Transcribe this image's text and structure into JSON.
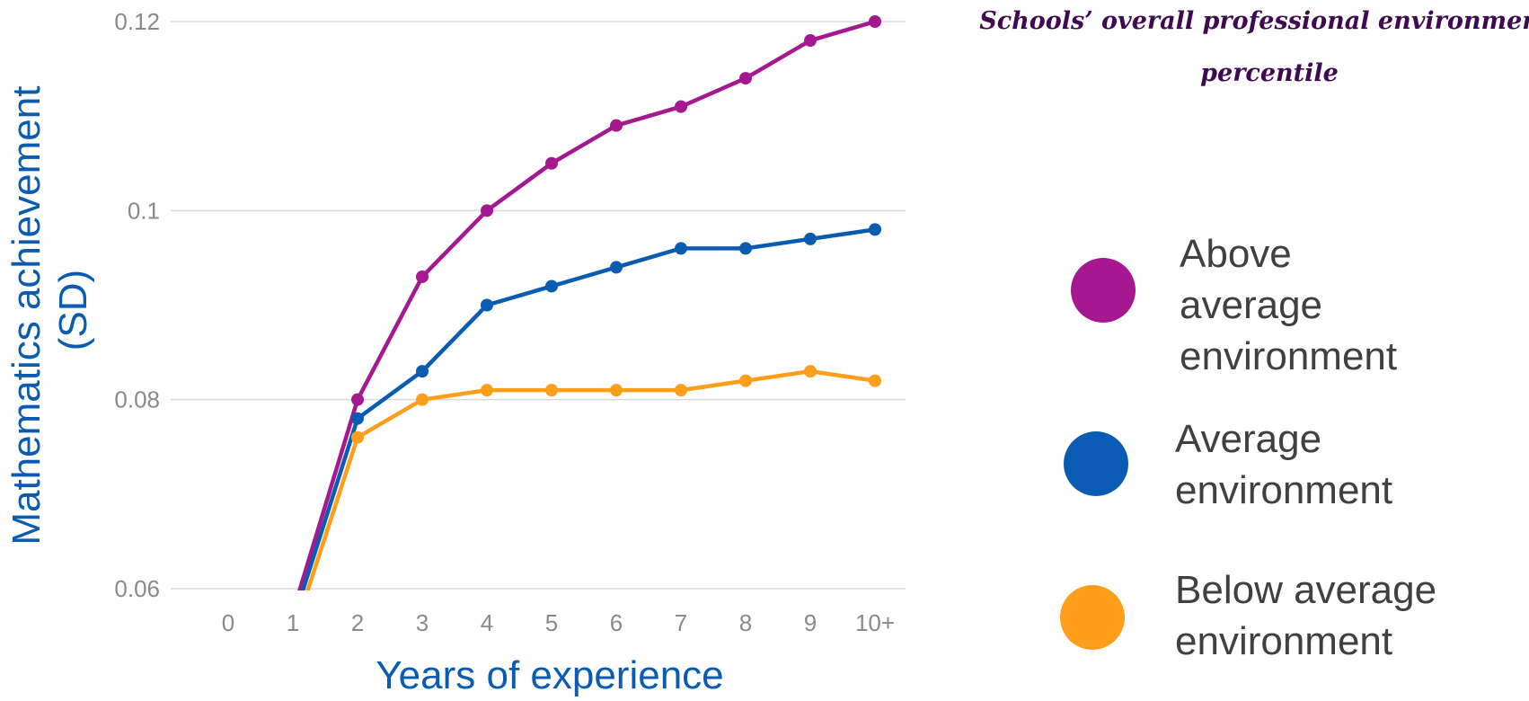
{
  "chart_data": {
    "type": "line",
    "title": "",
    "xlabel": "Years of experience",
    "ylabel_lines": [
      "Mathematics achievement",
      "(SD)"
    ],
    "categories": [
      "0",
      "1",
      "2",
      "3",
      "4",
      "5",
      "6",
      "7",
      "8",
      "9",
      "10+"
    ],
    "ylim": [
      0.06,
      0.12
    ],
    "yticks": [
      "0.06",
      "0.08",
      "0.1",
      "0.12"
    ],
    "grid": true,
    "legend": {
      "title_lines": [
        "Schools’ overall professional environment",
        "percentile"
      ],
      "placement": "right"
    },
    "series": [
      {
        "name_lines": [
          "Above",
          "average",
          "environment"
        ],
        "color": "#A51890",
        "values": [
          null,
          0.0575,
          0.08,
          0.093,
          0.1,
          0.105,
          0.109,
          0.111,
          0.114,
          0.118,
          0.12
        ]
      },
      {
        "name_lines": [
          "Average",
          "environment"
        ],
        "color": "#0A5CB3",
        "values": [
          null,
          0.0565,
          0.078,
          0.083,
          0.09,
          0.092,
          0.094,
          0.096,
          0.096,
          0.097,
          0.098
        ]
      },
      {
        "name_lines": [
          "Below average",
          "environment"
        ],
        "color": "#FF9E1B",
        "values": [
          null,
          0.055,
          0.076,
          0.08,
          0.081,
          0.081,
          0.081,
          0.081,
          0.082,
          0.083,
          0.082
        ]
      }
    ]
  }
}
